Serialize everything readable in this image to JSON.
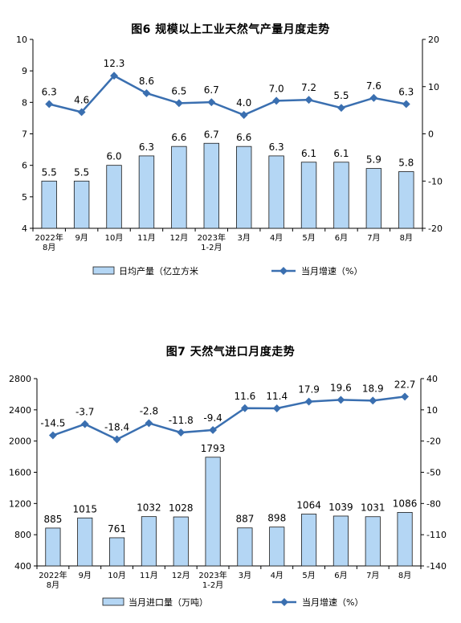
{
  "chart_data": [
    {
      "type": "bar",
      "title": "图6  规模以上工业天然气产量月度走势",
      "categories": [
        [
          "2022年",
          "8月"
        ],
        [
          "9月"
        ],
        [
          "10月"
        ],
        [
          "11月"
        ],
        [
          "12月"
        ],
        [
          "2023年",
          "1-2月"
        ],
        [
          "3月"
        ],
        [
          "4月"
        ],
        [
          "5月"
        ],
        [
          "6月"
        ],
        [
          "7月"
        ],
        [
          "8月"
        ]
      ],
      "series": [
        {
          "name": "日均产量（亿立方米",
          "type": "bar",
          "axis": "left",
          "values": [
            5.5,
            5.5,
            6.0,
            6.3,
            6.6,
            6.7,
            6.6,
            6.3,
            6.1,
            6.1,
            5.9,
            5.8
          ],
          "labels": [
            "5.5",
            "5.5",
            "6.0",
            "6.3",
            "6.6",
            "6.7",
            "6.6",
            "6.3",
            "6.1",
            "6.1",
            "5.9",
            "5.8"
          ]
        },
        {
          "name": "当月增速（%）",
          "type": "line",
          "axis": "right",
          "values": [
            6.3,
            4.6,
            12.3,
            8.6,
            6.5,
            6.7,
            4.0,
            7.0,
            7.2,
            5.5,
            7.6,
            6.3
          ],
          "labels": [
            "6.3",
            "4.6",
            "12.3",
            "8.6",
            "6.5",
            "6.7",
            "4.0",
            "7.0",
            "7.2",
            "5.5",
            "7.6",
            "6.3"
          ]
        }
      ],
      "left_axis": {
        "range": [
          4,
          10
        ],
        "ticks": [
          "4",
          "5",
          "6",
          "7",
          "8",
          "9",
          "10"
        ]
      },
      "right_axis": {
        "range": [
          -20,
          20
        ],
        "ticks": [
          "-20",
          "-10",
          "0",
          "10",
          "20"
        ]
      },
      "legend_position": "bottom",
      "colors": {
        "bar_fill": "#b4d6f4",
        "bar_stroke": "#1a1a1a",
        "line": "#3a6fb0"
      }
    },
    {
      "type": "bar",
      "title": "图7  天然气进口月度走势",
      "categories": [
        [
          "2022年",
          "8月"
        ],
        [
          "9月"
        ],
        [
          "10月"
        ],
        [
          "11月"
        ],
        [
          "12月"
        ],
        [
          "2023年",
          "1-2月"
        ],
        [
          "3月"
        ],
        [
          "4月"
        ],
        [
          "5月"
        ],
        [
          "6月"
        ],
        [
          "7月"
        ],
        [
          "8月"
        ]
      ],
      "series": [
        {
          "name": "当月进口量（万吨）",
          "type": "bar",
          "axis": "left",
          "values": [
            885,
            1015,
            761,
            1032,
            1028,
            1793,
            887,
            898,
            1064,
            1039,
            1031,
            1086
          ],
          "labels": [
            "885",
            "1015",
            "761",
            "1032",
            "1028",
            "1793",
            "887",
            "898",
            "1064",
            "1039",
            "1031",
            "1086"
          ]
        },
        {
          "name": "当月增速（%）",
          "type": "line",
          "axis": "right",
          "values": [
            -14.5,
            -3.7,
            -18.4,
            -2.8,
            -11.8,
            -9.4,
            11.6,
            11.4,
            17.9,
            19.6,
            18.9,
            22.7
          ],
          "labels": [
            "-14.5",
            "-3.7",
            "-18.4",
            "-2.8",
            "-11.8",
            "-9.4",
            "11.6",
            "11.4",
            "17.9",
            "19.6",
            "18.9",
            "22.7"
          ]
        }
      ],
      "left_axis": {
        "range": [
          400,
          2800
        ],
        "ticks": [
          "400",
          "800",
          "1200",
          "1600",
          "2000",
          "2400",
          "2800"
        ]
      },
      "right_axis": {
        "range": [
          -140,
          40
        ],
        "ticks": [
          "-140",
          "-110",
          "-80",
          "-50",
          "-20",
          "10",
          "40"
        ]
      },
      "legend_position": "bottom",
      "colors": {
        "bar_fill": "#b4d6f4",
        "bar_stroke": "#1a1a1a",
        "line": "#3a6fb0"
      }
    }
  ]
}
